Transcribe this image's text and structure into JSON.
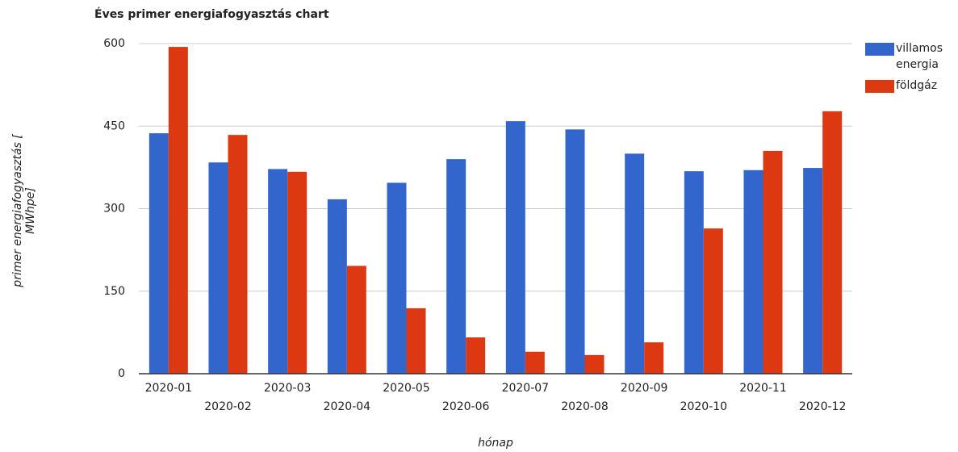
{
  "chart_data": {
    "type": "bar",
    "title": "Éves primer energiafogyasztás chart",
    "x_label": "hónap",
    "y_label": "primer energiafogyasztás [ MWhpe]",
    "categories": [
      "2020-01",
      "2020-02",
      "2020-03",
      "2020-04",
      "2020-05",
      "2020-06",
      "2020-07",
      "2020-08",
      "2020-09",
      "2020-10",
      "2020-11",
      "2020-12"
    ],
    "series": [
      {
        "name": "villamos energia",
        "color": "#3366cc",
        "values": [
          437,
          384,
          372,
          317,
          347,
          390,
          459,
          444,
          400,
          368,
          370,
          374
        ]
      },
      {
        "name": "földgáz",
        "color": "#dc3912",
        "values": [
          594,
          434,
          367,
          196,
          119,
          66,
          40,
          34,
          57,
          264,
          405,
          477
        ]
      }
    ],
    "ylim": [
      0,
      600
    ],
    "yticks": [
      0,
      150,
      300,
      450,
      600
    ],
    "grid": true,
    "legend": "right"
  }
}
